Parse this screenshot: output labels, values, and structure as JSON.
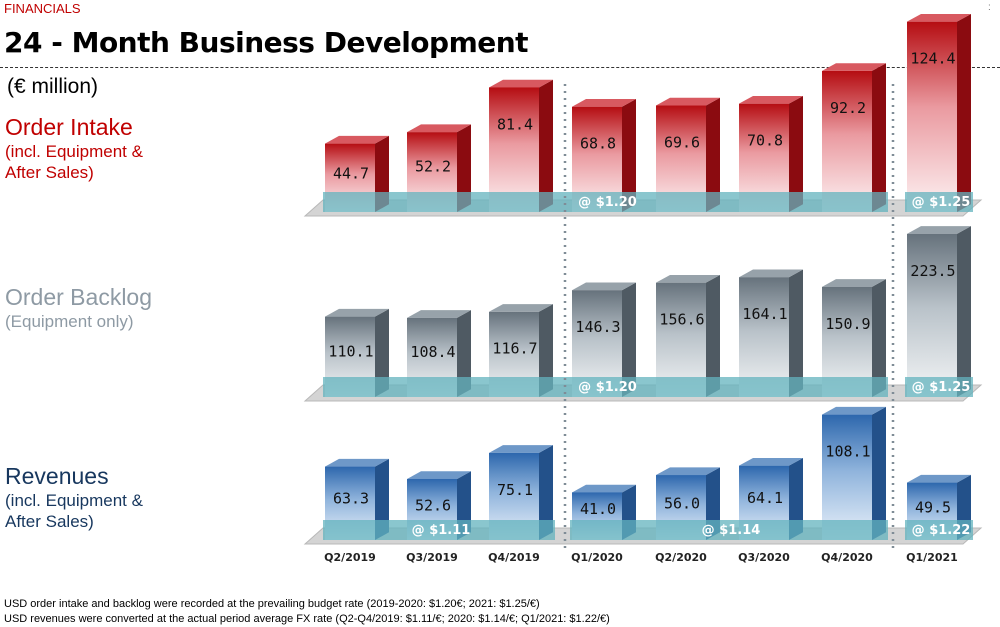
{
  "header": {
    "section": "FINANCIALS",
    "title": "24 - Month Business Development",
    "unit": "(€ million)",
    "corner_mark": ":"
  },
  "rows": [
    {
      "title": "Order Intake",
      "sub1": "(incl. Equipment &",
      "sub2": "After Sales)",
      "color": "#c00000"
    },
    {
      "title": "Order Backlog",
      "sub1": "(Equipment only)",
      "sub2": "",
      "color": "#8e9aa4"
    },
    {
      "title": "Revenues",
      "sub1": "(incl. Equipment &",
      "sub2": "After Sales)",
      "color": "#17375e"
    }
  ],
  "footer": {
    "line1": "USD order intake and backlog were recorded at the prevailing budget rate (2019-2020: $1.20€; 2021: $1.25/€)",
    "line2": "USD revenues were converted at the actual period average FX rate (Q2-Q4/2019: $1.11/€; 2020: $1.14/€; Q1/2021: $1.22/€)"
  },
  "chart_data": {
    "type": "bar",
    "categories": [
      "Q2/2019",
      "Q3/2019",
      "Q4/2019",
      "Q1/2020",
      "Q2/2020",
      "Q3/2020",
      "Q4/2020",
      "Q1/2021"
    ],
    "series": [
      {
        "name": "Order Intake",
        "values": [
          44.7,
          52.2,
          81.4,
          68.8,
          69.6,
          70.8,
          92.2,
          124.4
        ],
        "color": "#c00000"
      },
      {
        "name": "Order Backlog",
        "values": [
          110.1,
          108.4,
          116.7,
          146.3,
          156.6,
          164.1,
          150.9,
          223.5
        ],
        "color": "#7f8c96"
      },
      {
        "name": "Revenues",
        "values": [
          63.3,
          52.6,
          75.1,
          41.0,
          56.0,
          64.1,
          108.1,
          49.5
        ],
        "color": "#2e6db4"
      }
    ],
    "fx_labels": [
      [
        {
          "text": "@ $1.20",
          "from": 0,
          "to": 6
        },
        {
          "text": "@ $1.25",
          "from": 7,
          "to": 7
        }
      ],
      [
        {
          "text": "@ $1.20",
          "from": 0,
          "to": 6
        },
        {
          "text": "@ $1.25",
          "from": 7,
          "to": 7
        }
      ],
      [
        {
          "text": "@ $1.11",
          "from": 0,
          "to": 2
        },
        {
          "text": "@ $1.14",
          "from": 3,
          "to": 6
        },
        {
          "text": "@ $1.22",
          "from": 7,
          "to": 7
        }
      ]
    ]
  }
}
